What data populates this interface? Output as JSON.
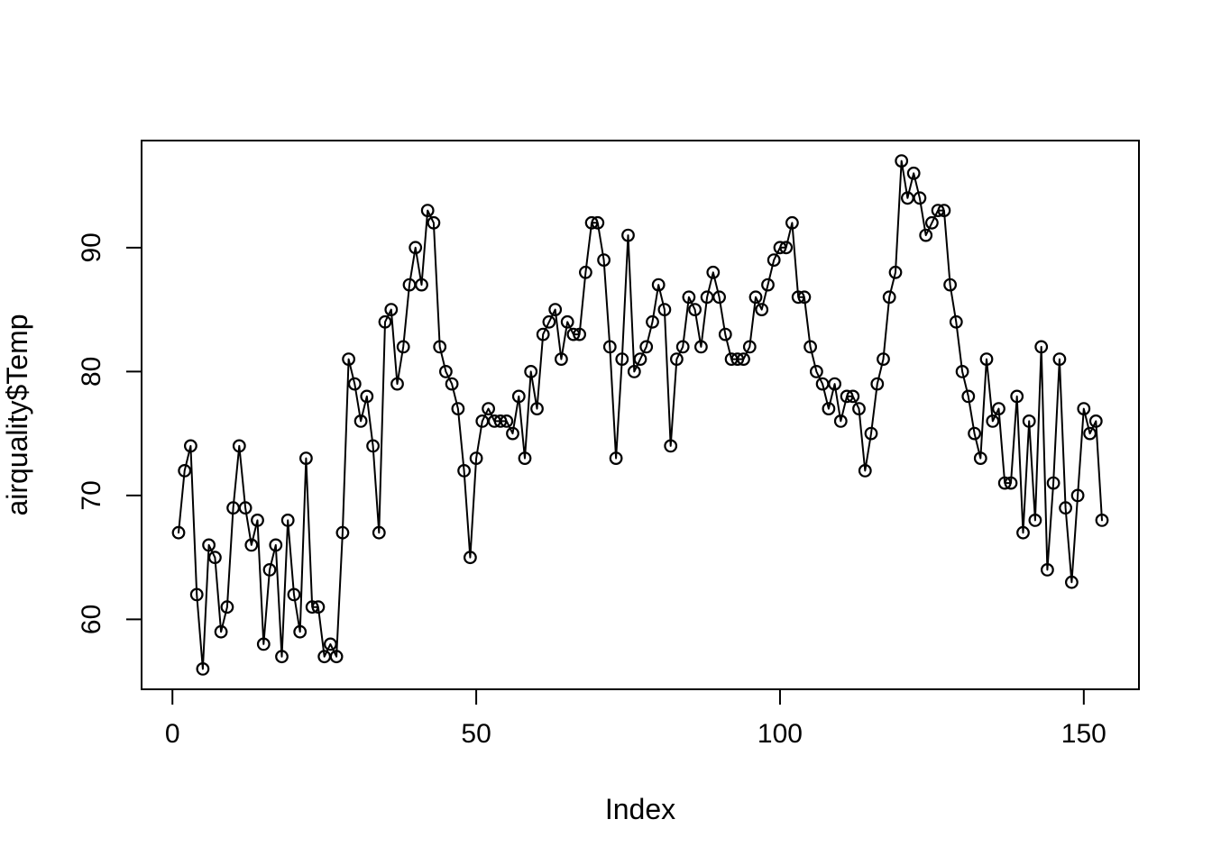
{
  "figure": {
    "background": "#ffffff",
    "foreground": "#000000"
  },
  "chart_data": {
    "type": "line",
    "title": "",
    "xlabel": "Index",
    "ylabel": "airquality$Temp",
    "marker": "open-circle",
    "grid": false,
    "legend": "none",
    "xlim": [
      -5.08,
      159.08
    ],
    "ylim": [
      54.36,
      98.64
    ],
    "x_ticks": [
      0,
      50,
      100,
      150
    ],
    "y_ticks": [
      60,
      70,
      80,
      90
    ],
    "series": [
      {
        "name": "airquality$Temp",
        "x_start": 1,
        "values": [
          67,
          72,
          74,
          62,
          56,
          66,
          65,
          59,
          61,
          69,
          74,
          69,
          66,
          68,
          58,
          64,
          66,
          57,
          68,
          62,
          59,
          73,
          61,
          61,
          57,
          58,
          57,
          67,
          81,
          79,
          76,
          78,
          74,
          67,
          84,
          85,
          79,
          82,
          87,
          90,
          87,
          93,
          92,
          82,
          80,
          79,
          77,
          72,
          65,
          73,
          76,
          77,
          76,
          76,
          76,
          75,
          78,
          73,
          80,
          77,
          83,
          84,
          85,
          81,
          84,
          83,
          83,
          88,
          92,
          92,
          89,
          82,
          73,
          81,
          91,
          80,
          81,
          82,
          84,
          87,
          85,
          74,
          81,
          82,
          86,
          85,
          82,
          86,
          88,
          86,
          83,
          81,
          81,
          81,
          82,
          86,
          85,
          87,
          89,
          90,
          90,
          92,
          86,
          86,
          82,
          80,
          79,
          77,
          79,
          76,
          78,
          78,
          77,
          72,
          75,
          79,
          81,
          86,
          88,
          97,
          94,
          96,
          94,
          91,
          92,
          93,
          93,
          87,
          84,
          80,
          78,
          75,
          73,
          81,
          76,
          77,
          71,
          71,
          78,
          67,
          76,
          68,
          82,
          64,
          71,
          81,
          69,
          63,
          70,
          77,
          75,
          76,
          68
        ]
      }
    ]
  }
}
